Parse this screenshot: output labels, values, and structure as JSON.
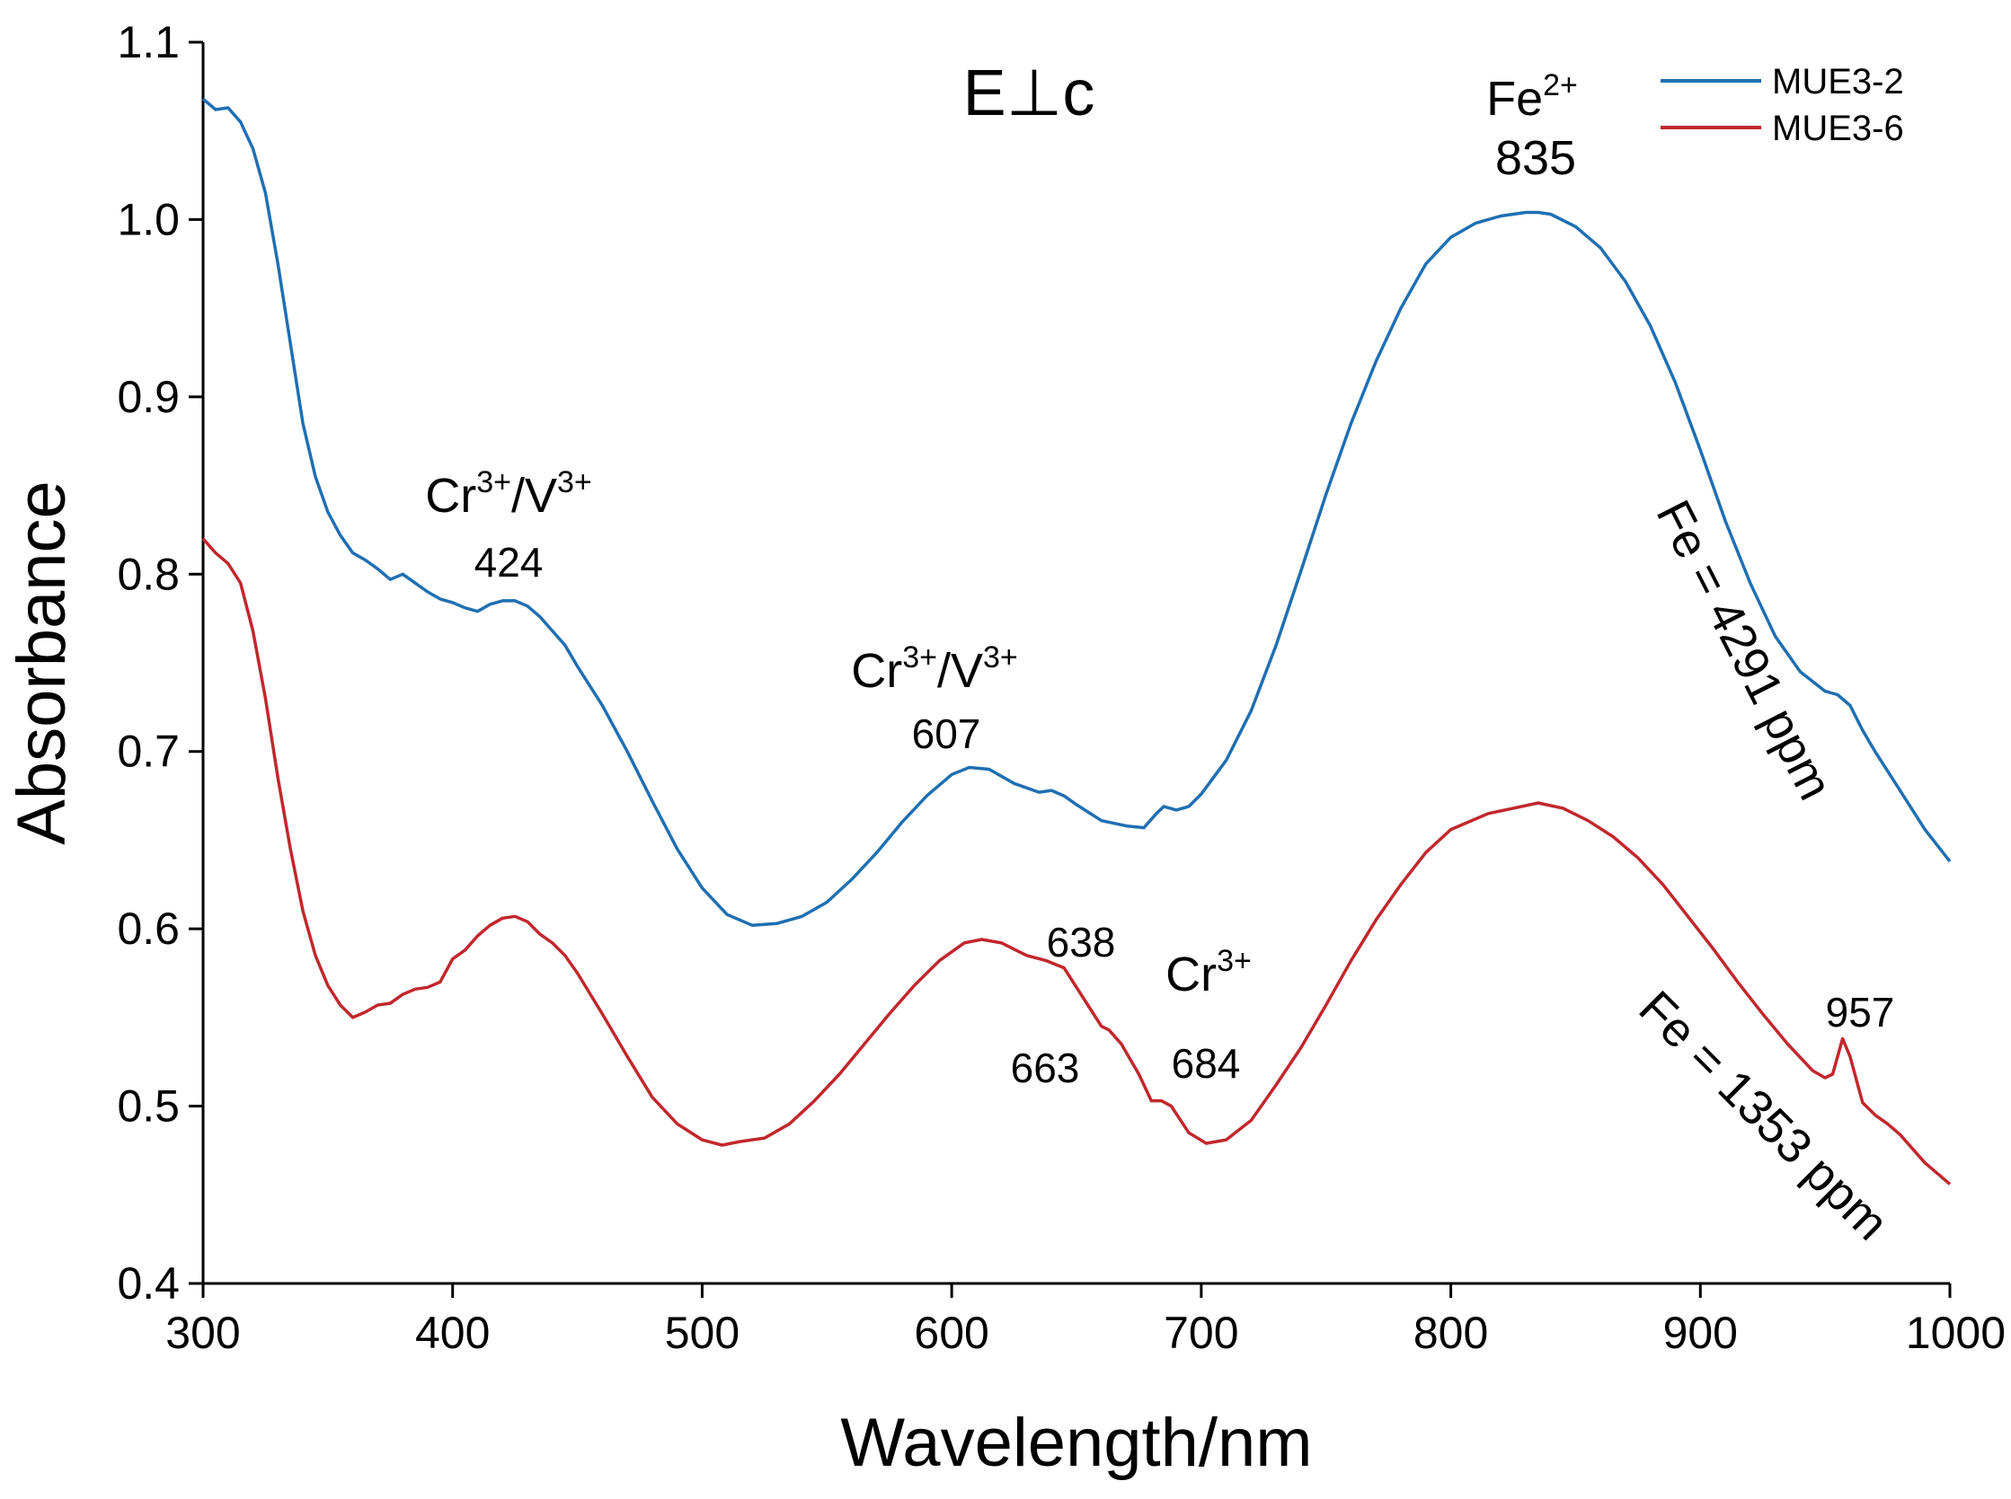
{
  "chart_data": {
    "type": "line",
    "title": "E⊥c",
    "xlabel": "Wavelength/nm",
    "ylabel": "Absorbance",
    "xlim": [
      300,
      1000
    ],
    "ylim": [
      0.4,
      1.1
    ],
    "x_ticks": [
      "300",
      "400",
      "500",
      "600",
      "700",
      "800",
      "900",
      "1000"
    ],
    "y_ticks": [
      "0.4",
      "0.5",
      "0.6",
      "0.7",
      "0.8",
      "0.9",
      "1.0",
      "1.1"
    ],
    "grid": false,
    "legend_position": "top-right",
    "series": [
      {
        "name": "MUE3-2",
        "color": "#1f6fb2",
        "points": [
          [
            300,
            1.068
          ],
          [
            305,
            1.062
          ],
          [
            310,
            1.063
          ],
          [
            315,
            1.055
          ],
          [
            320,
            1.04
          ],
          [
            325,
            1.015
          ],
          [
            330,
            0.975
          ],
          [
            335,
            0.93
          ],
          [
            340,
            0.885
          ],
          [
            345,
            0.855
          ],
          [
            350,
            0.835
          ],
          [
            355,
            0.822
          ],
          [
            360,
            0.812
          ],
          [
            365,
            0.808
          ],
          [
            370,
            0.803
          ],
          [
            375,
            0.797
          ],
          [
            380,
            0.8
          ],
          [
            385,
            0.795
          ],
          [
            390,
            0.79
          ],
          [
            395,
            0.786
          ],
          [
            400,
            0.784
          ],
          [
            405,
            0.781
          ],
          [
            410,
            0.779
          ],
          [
            415,
            0.783
          ],
          [
            420,
            0.785
          ],
          [
            425,
            0.785
          ],
          [
            430,
            0.782
          ],
          [
            435,
            0.776
          ],
          [
            440,
            0.768
          ],
          [
            445,
            0.76
          ],
          [
            450,
            0.748
          ],
          [
            460,
            0.726
          ],
          [
            470,
            0.7
          ],
          [
            480,
            0.672
          ],
          [
            490,
            0.645
          ],
          [
            500,
            0.623
          ],
          [
            510,
            0.608
          ],
          [
            520,
            0.602
          ],
          [
            530,
            0.603
          ],
          [
            540,
            0.607
          ],
          [
            550,
            0.615
          ],
          [
            560,
            0.628
          ],
          [
            570,
            0.643
          ],
          [
            580,
            0.66
          ],
          [
            590,
            0.675
          ],
          [
            600,
            0.687
          ],
          [
            607,
            0.691
          ],
          [
            615,
            0.69
          ],
          [
            625,
            0.682
          ],
          [
            635,
            0.677
          ],
          [
            640,
            0.678
          ],
          [
            645,
            0.675
          ],
          [
            650,
            0.67
          ],
          [
            660,
            0.661
          ],
          [
            670,
            0.658
          ],
          [
            677,
            0.657
          ],
          [
            682,
            0.665
          ],
          [
            685,
            0.669
          ],
          [
            690,
            0.667
          ],
          [
            695,
            0.669
          ],
          [
            700,
            0.676
          ],
          [
            710,
            0.695
          ],
          [
            720,
            0.723
          ],
          [
            730,
            0.76
          ],
          [
            740,
            0.802
          ],
          [
            750,
            0.845
          ],
          [
            760,
            0.885
          ],
          [
            770,
            0.92
          ],
          [
            780,
            0.95
          ],
          [
            790,
            0.975
          ],
          [
            800,
            0.99
          ],
          [
            810,
            0.998
          ],
          [
            820,
            1.002
          ],
          [
            830,
            1.004
          ],
          [
            835,
            1.004
          ],
          [
            840,
            1.003
          ],
          [
            850,
            0.996
          ],
          [
            860,
            0.984
          ],
          [
            870,
            0.965
          ],
          [
            880,
            0.94
          ],
          [
            890,
            0.908
          ],
          [
            900,
            0.87
          ],
          [
            910,
            0.83
          ],
          [
            920,
            0.795
          ],
          [
            930,
            0.765
          ],
          [
            940,
            0.745
          ],
          [
            950,
            0.734
          ],
          [
            955,
            0.732
          ],
          [
            960,
            0.726
          ],
          [
            965,
            0.712
          ],
          [
            970,
            0.7
          ],
          [
            980,
            0.678
          ],
          [
            990,
            0.656
          ],
          [
            1000,
            0.638
          ]
        ]
      },
      {
        "name": "MUE3-6",
        "color": "#c1272d",
        "points": [
          [
            300,
            0.82
          ],
          [
            305,
            0.812
          ],
          [
            310,
            0.806
          ],
          [
            315,
            0.795
          ],
          [
            320,
            0.768
          ],
          [
            325,
            0.73
          ],
          [
            330,
            0.685
          ],
          [
            335,
            0.645
          ],
          [
            340,
            0.61
          ],
          [
            345,
            0.585
          ],
          [
            350,
            0.568
          ],
          [
            355,
            0.557
          ],
          [
            360,
            0.55
          ],
          [
            365,
            0.553
          ],
          [
            370,
            0.557
          ],
          [
            375,
            0.558
          ],
          [
            380,
            0.563
          ],
          [
            385,
            0.566
          ],
          [
            390,
            0.567
          ],
          [
            395,
            0.57
          ],
          [
            400,
            0.583
          ],
          [
            405,
            0.588
          ],
          [
            410,
            0.596
          ],
          [
            415,
            0.602
          ],
          [
            420,
            0.606
          ],
          [
            425,
            0.607
          ],
          [
            430,
            0.604
          ],
          [
            435,
            0.597
          ],
          [
            440,
            0.592
          ],
          [
            445,
            0.585
          ],
          [
            450,
            0.575
          ],
          [
            460,
            0.552
          ],
          [
            470,
            0.528
          ],
          [
            480,
            0.505
          ],
          [
            490,
            0.49
          ],
          [
            500,
            0.481
          ],
          [
            508,
            0.478
          ],
          [
            515,
            0.48
          ],
          [
            525,
            0.482
          ],
          [
            535,
            0.49
          ],
          [
            545,
            0.503
          ],
          [
            555,
            0.518
          ],
          [
            565,
            0.535
          ],
          [
            575,
            0.552
          ],
          [
            585,
            0.568
          ],
          [
            595,
            0.582
          ],
          [
            605,
            0.592
          ],
          [
            612,
            0.594
          ],
          [
            620,
            0.592
          ],
          [
            630,
            0.585
          ],
          [
            638,
            0.582
          ],
          [
            645,
            0.578
          ],
          [
            650,
            0.567
          ],
          [
            655,
            0.556
          ],
          [
            660,
            0.545
          ],
          [
            663,
            0.543
          ],
          [
            668,
            0.535
          ],
          [
            675,
            0.518
          ],
          [
            680,
            0.503
          ],
          [
            684,
            0.503
          ],
          [
            688,
            0.5
          ],
          [
            695,
            0.485
          ],
          [
            702,
            0.479
          ],
          [
            710,
            0.481
          ],
          [
            720,
            0.492
          ],
          [
            730,
            0.512
          ],
          [
            740,
            0.533
          ],
          [
            750,
            0.557
          ],
          [
            760,
            0.582
          ],
          [
            770,
            0.605
          ],
          [
            780,
            0.625
          ],
          [
            790,
            0.643
          ],
          [
            800,
            0.656
          ],
          [
            815,
            0.665
          ],
          [
            825,
            0.668
          ],
          [
            835,
            0.671
          ],
          [
            845,
            0.668
          ],
          [
            855,
            0.661
          ],
          [
            865,
            0.652
          ],
          [
            875,
            0.64
          ],
          [
            885,
            0.625
          ],
          [
            895,
            0.607
          ],
          [
            905,
            0.589
          ],
          [
            915,
            0.57
          ],
          [
            925,
            0.552
          ],
          [
            935,
            0.535
          ],
          [
            945,
            0.52
          ],
          [
            950,
            0.516
          ],
          [
            953,
            0.518
          ],
          [
            957,
            0.538
          ],
          [
            960,
            0.528
          ],
          [
            965,
            0.502
          ],
          [
            970,
            0.495
          ],
          [
            975,
            0.49
          ],
          [
            980,
            0.484
          ],
          [
            990,
            0.468
          ],
          [
            1000,
            0.456
          ]
        ]
      }
    ],
    "annotations": [
      {
        "id": "cr-v-424-label",
        "text": "/",
        "x": 424,
        "y": 0.84
      },
      {
        "id": "cr-v-424-value",
        "text": "424",
        "x": 424,
        "y": 0.8
      },
      {
        "id": "cr-v-607-label",
        "text": "/",
        "x": 607,
        "y": 0.735
      },
      {
        "id": "cr-v-607-value",
        "text": "607",
        "x": 607,
        "y": 0.695
      },
      {
        "id": "fe-835-label",
        "text": "Fe",
        "x": 835,
        "y": 1.065
      },
      {
        "id": "fe-835-value",
        "text": "835",
        "x": 835,
        "y": 1.025
      },
      {
        "id": "cr-label",
        "text": "Cr",
        "x": 685,
        "y": 0.57
      },
      {
        "id": "peak-638",
        "text": "638",
        "x": 637,
        "y": 0.59
      },
      {
        "id": "peak-663",
        "text": "663",
        "x": 629,
        "y": 0.52
      },
      {
        "id": "peak-684",
        "text": "684",
        "x": 702,
        "y": 0.52
      },
      {
        "id": "peak-957",
        "text": "957",
        "x": 960,
        "y": 0.552
      },
      {
        "id": "fe-4291",
        "text": "Fe = 4291 ppm",
        "x": 945,
        "y": 0.775,
        "angle": 63
      },
      {
        "id": "fe-1353",
        "text": "Fe = 1353 ppm",
        "x": 958,
        "y": 0.507,
        "angle": 45
      }
    ],
    "superscripts": {
      "cr3": "3+",
      "v3": "3+",
      "fe2": "2+"
    }
  }
}
